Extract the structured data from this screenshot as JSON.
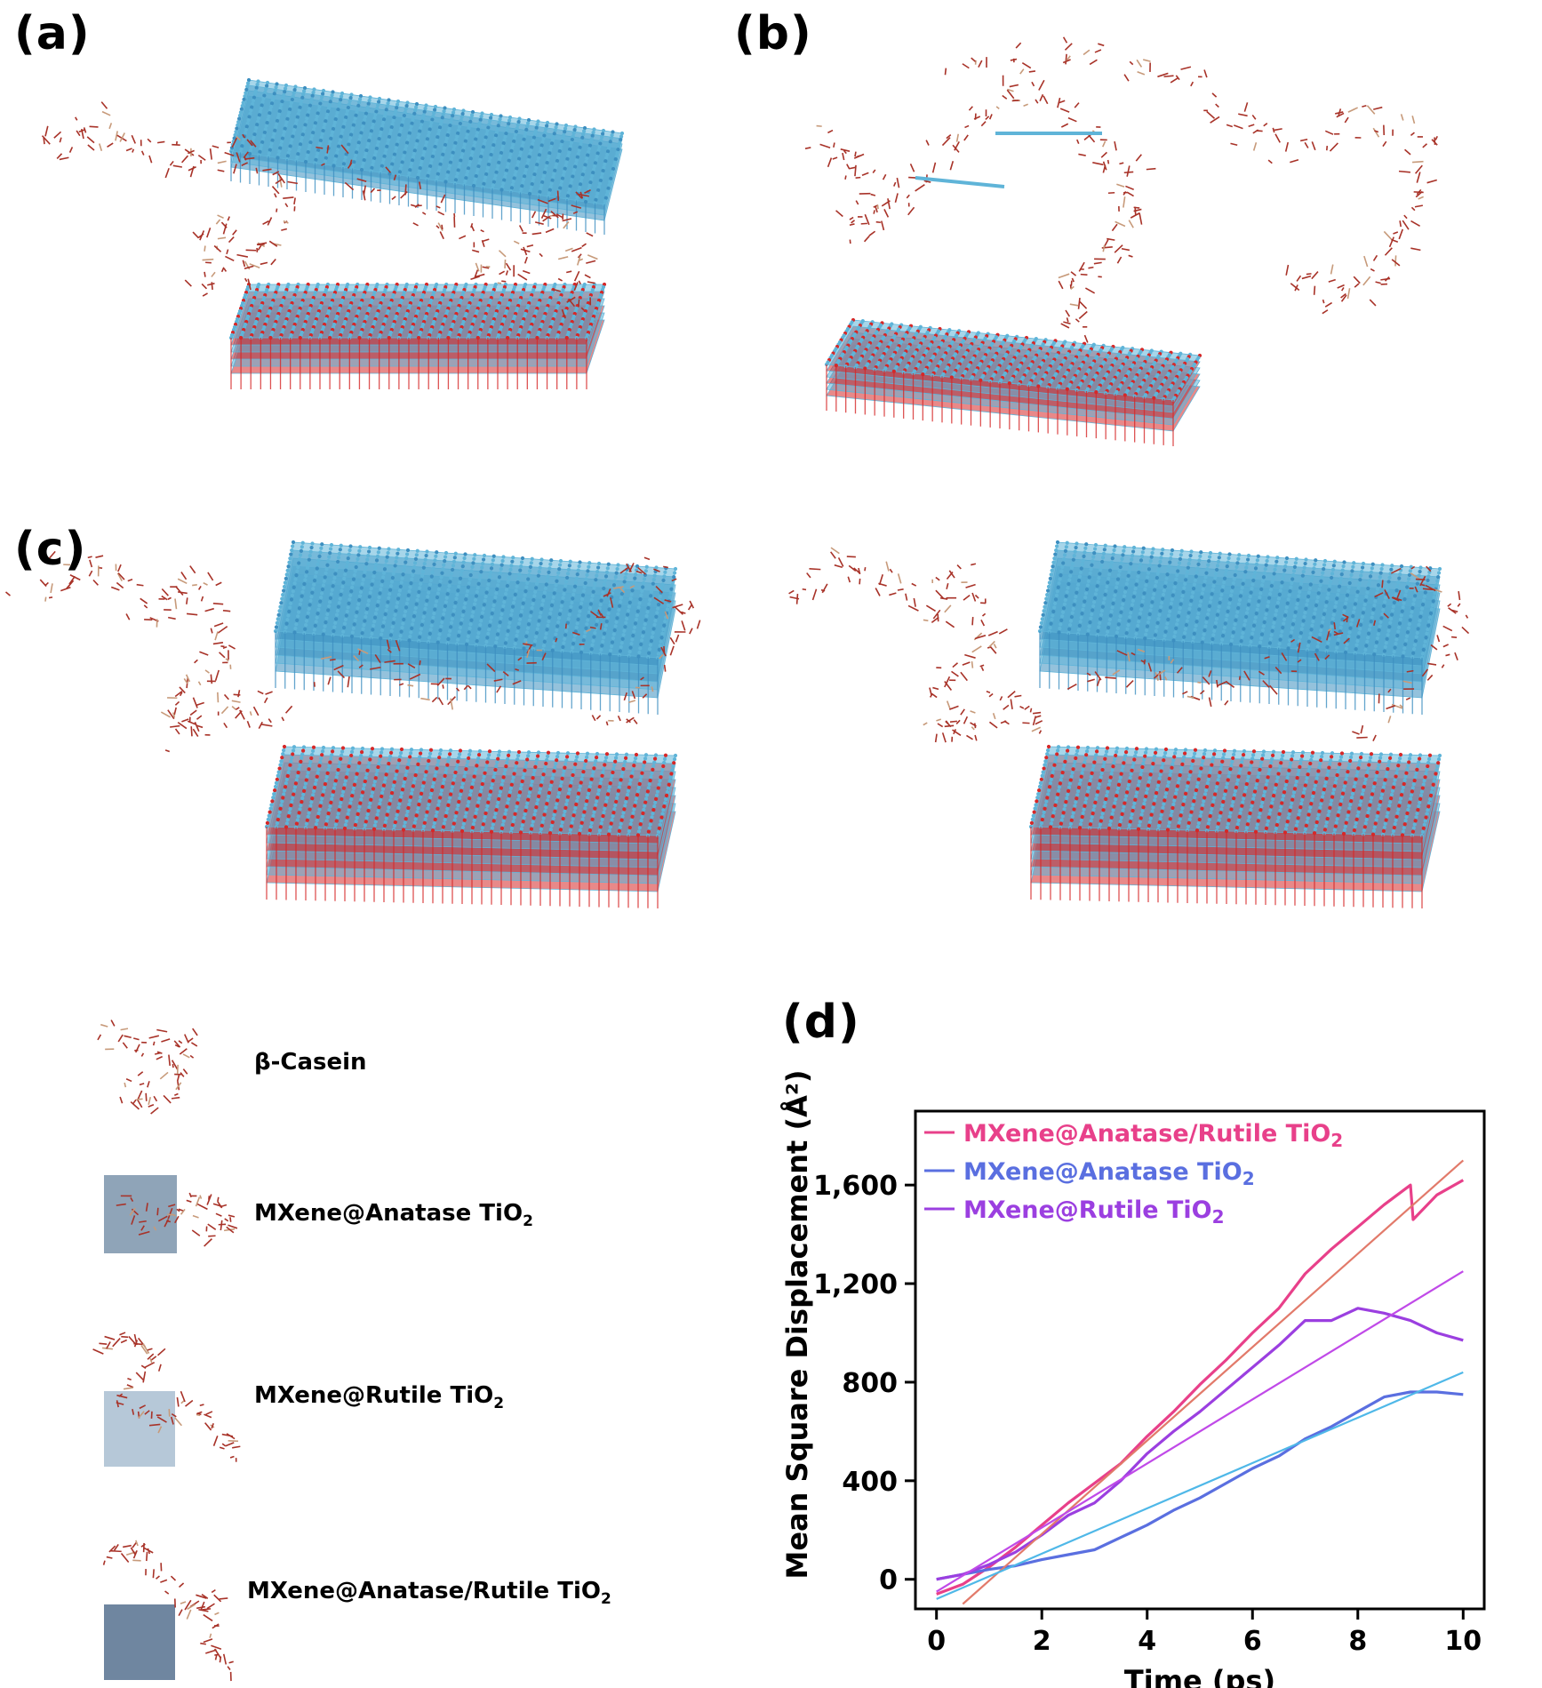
{
  "panels": {
    "a": "(a)",
    "b": "(b)",
    "c": "(c)",
    "d": "(d)"
  },
  "legend": {
    "items": [
      {
        "label": "β-Casein"
      },
      {
        "label": "MXene@Anatase TiO",
        "sub": "2"
      },
      {
        "label": "MXene@Rutile TiO",
        "sub": "2"
      },
      {
        "label": "MXene@Anatase/Rutile TiO",
        "sub": "2"
      }
    ]
  },
  "colors": {
    "protein": "#a83228",
    "oxygen": "#d62828",
    "titanium": "#5fb4d8",
    "anatase_rutile": "#e8408a",
    "anatase": "#5a6fe0",
    "rutile": "#9b3fe0",
    "fit_anatase_rutile": "#e27a6a",
    "fit_anatase": "#4fb8e8",
    "fit_rutile": "#c04ae8"
  },
  "chart_data": {
    "type": "line",
    "title": "",
    "xlabel": "Time (ps)",
    "ylabel": "Mean Square Displacement (Å²)",
    "xlim": [
      -0.4,
      10.4
    ],
    "ylim": [
      -120,
      1900
    ],
    "xticks": [
      0,
      2,
      4,
      6,
      8,
      10
    ],
    "yticks": [
      0,
      400,
      800,
      1200,
      1600
    ],
    "ytick_labels": [
      "0",
      "400",
      "800",
      "1,200",
      "1,600"
    ],
    "legend_position": "top-left",
    "series": [
      {
        "name": "MXene@Anatase/Rutile TiO",
        "name_sub": "2",
        "color": "#e8408a",
        "x": [
          0,
          0.5,
          1,
          1.5,
          2,
          2.5,
          3,
          3.5,
          4,
          4.5,
          5,
          5.5,
          6,
          6.5,
          7,
          7.5,
          8,
          8.5,
          9,
          9.05,
          9.5,
          10
        ],
        "y": [
          -60,
          -20,
          50,
          130,
          220,
          310,
          390,
          470,
          580,
          680,
          790,
          890,
          1000,
          1100,
          1240,
          1340,
          1430,
          1520,
          1600,
          1460,
          1560,
          1620
        ]
      },
      {
        "name": "MXene@Anatase TiO",
        "name_sub": "2",
        "color": "#5a6fe0",
        "x": [
          0,
          0.5,
          1,
          1.5,
          2,
          2.5,
          3,
          3.5,
          4,
          4.5,
          5,
          5.5,
          6,
          6.5,
          7,
          7.5,
          8,
          8.5,
          9,
          9.5,
          10
        ],
        "y": [
          0,
          20,
          40,
          55,
          80,
          100,
          120,
          170,
          220,
          280,
          330,
          390,
          450,
          500,
          570,
          620,
          680,
          740,
          760,
          760,
          750
        ]
      },
      {
        "name": "MXene@Rutile TiO",
        "name_sub": "2",
        "color": "#9b3fe0",
        "x": [
          0,
          0.5,
          1,
          1.5,
          2,
          2.5,
          3,
          3.5,
          4,
          4.5,
          5,
          5.5,
          6,
          6.5,
          7,
          7.5,
          8,
          8.5,
          9,
          9.5,
          10
        ],
        "y": [
          0,
          20,
          60,
          110,
          180,
          260,
          310,
          400,
          510,
          600,
          680,
          770,
          860,
          950,
          1050,
          1050,
          1100,
          1080,
          1050,
          1000,
          970
        ]
      },
      {
        "name": "",
        "color": "#e27a6a",
        "x": [
          0.5,
          10
        ],
        "y": [
          -100,
          1700
        ]
      },
      {
        "name": "",
        "color": "#4fb8e8",
        "x": [
          0,
          10
        ],
        "y": [
          -80,
          840
        ]
      },
      {
        "name": "",
        "color": "#c04ae8",
        "x": [
          0,
          10
        ],
        "y": [
          -50,
          1250
        ]
      }
    ]
  }
}
